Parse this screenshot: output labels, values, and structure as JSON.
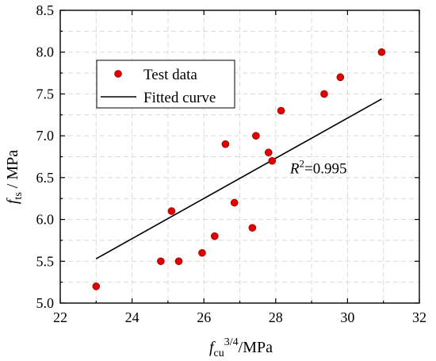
{
  "chart_data": {
    "type": "scatter",
    "xlim": [
      22,
      32
    ],
    "ylim": [
      5.0,
      8.5
    ],
    "x_ticks": [
      "22",
      "24",
      "26",
      "28",
      "30",
      "32"
    ],
    "y_ticks": [
      "5.0",
      "5.5",
      "6.0",
      "6.5",
      "7.0",
      "7.5",
      "8.0",
      "8.5"
    ],
    "x_tick_values": [
      22,
      24,
      26,
      28,
      30,
      32
    ],
    "y_tick_values": [
      5.0,
      5.5,
      6.0,
      6.5,
      7.0,
      7.5,
      8.0,
      8.5
    ],
    "grid": true,
    "legend_position": "top-left",
    "xlabel": {
      "base": "f",
      "sub": "cu",
      "sup": "3/4",
      "unit": "/MPa"
    },
    "ylabel": {
      "base": "f",
      "sub": "ts",
      "unit": " / MPa"
    },
    "series": [
      {
        "name": "Test data",
        "kind": "points",
        "color": "#e00000",
        "points": [
          [
            23.0,
            5.2
          ],
          [
            24.8,
            5.5
          ],
          [
            25.1,
            6.1
          ],
          [
            25.3,
            5.5
          ],
          [
            25.95,
            5.6
          ],
          [
            26.3,
            5.8
          ],
          [
            26.6,
            6.9
          ],
          [
            26.85,
            6.2
          ],
          [
            27.35,
            5.9
          ],
          [
            27.45,
            7.0
          ],
          [
            27.8,
            6.8
          ],
          [
            27.9,
            6.7
          ],
          [
            28.15,
            7.3
          ],
          [
            29.35,
            7.5
          ],
          [
            29.8,
            7.7
          ],
          [
            30.95,
            8.0
          ]
        ]
      },
      {
        "name": "Fitted curve",
        "kind": "line",
        "color": "#000000",
        "points": [
          [
            23.0,
            5.53
          ],
          [
            30.95,
            7.44
          ]
        ]
      }
    ],
    "annotation": {
      "base": "R",
      "sup": "2",
      "value": "=0.995",
      "x": 28.4,
      "y": 6.55
    }
  }
}
